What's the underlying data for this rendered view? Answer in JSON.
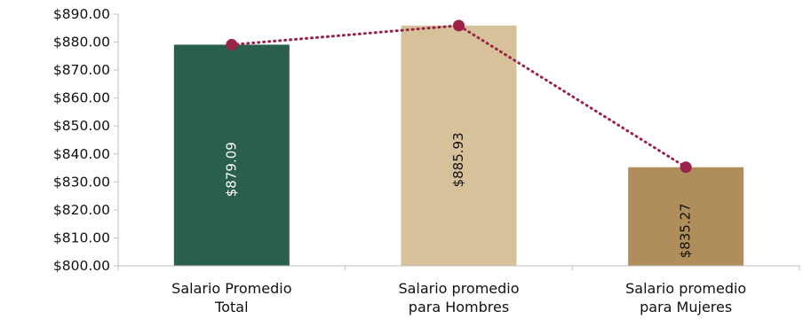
{
  "chart_data": {
    "type": "bar",
    "categories": [
      "Salario Promedio Total",
      "Salario promedio para Hombres",
      "Salario promedio para Mujeres"
    ],
    "category_lines": [
      [
        "Salario Promedio",
        "Total"
      ],
      [
        "Salario promedio",
        "para Hombres"
      ],
      [
        "Salario promedio",
        "para Mujeres"
      ]
    ],
    "values": [
      879.09,
      885.93,
      835.27
    ],
    "value_labels": [
      "$879.09",
      "$885.93",
      "$835.27"
    ],
    "bar_colors": [
      "#2a5e4e",
      "#d6c19a",
      "#b08e5c"
    ],
    "bar_label_colors": [
      "#ffffff",
      "#111111",
      "#111111"
    ],
    "line_series": {
      "values": [
        879.09,
        885.93,
        835.27
      ],
      "color": "#9b2247",
      "style": "dotted"
    },
    "yticks": [
      "$800.00",
      "$810.00",
      "$820.00",
      "$830.00",
      "$840.00",
      "$850.00",
      "$860.00",
      "$870.00",
      "$880.00",
      "$890.00"
    ],
    "ylim": [
      800,
      890
    ],
    "title": "",
    "xlabel": "",
    "ylabel": "",
    "grid": false,
    "legend": "none"
  }
}
